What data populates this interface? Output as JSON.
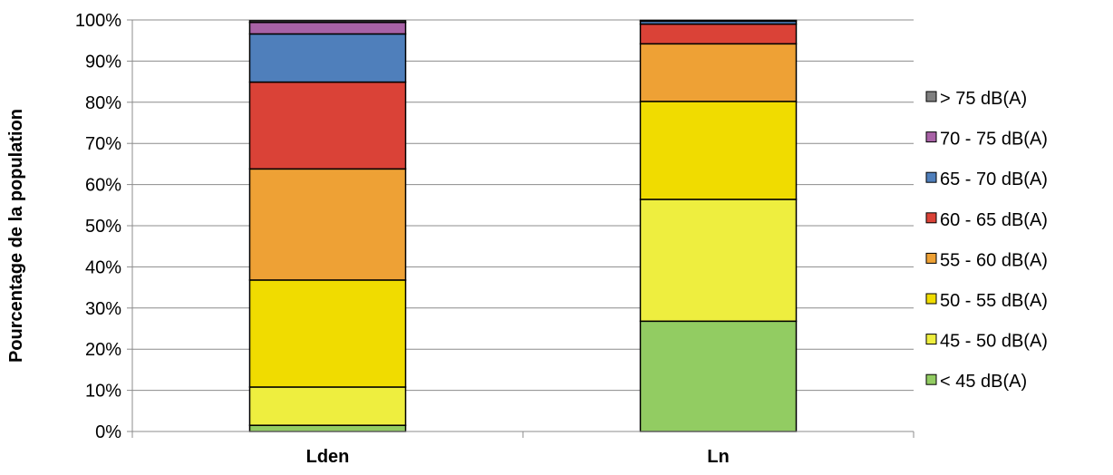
{
  "chart_data": {
    "type": "bar",
    "stacked": true,
    "percent": true,
    "categories": [
      "Lden",
      "Ln"
    ],
    "ylabel": "Pourcentage de la population",
    "xlabel": "",
    "ylim": [
      0,
      100
    ],
    "yticks": [
      "0%",
      "10%",
      "20%",
      "30%",
      "40%",
      "50%",
      "60%",
      "70%",
      "80%",
      "90%",
      "100%"
    ],
    "grid": true,
    "legend_position": "right",
    "series": [
      {
        "name": "< 45 dB(A)",
        "color": "#92cc62",
        "values": [
          1.5,
          26.8
        ]
      },
      {
        "name": "45 - 50 dB(A)",
        "color": "#eeee3f",
        "values": [
          9.3,
          29.6
        ]
      },
      {
        "name": "50 - 55 dB(A)",
        "color": "#f0dc00",
        "values": [
          26.0,
          23.8
        ]
      },
      {
        "name": "55 - 60 dB(A)",
        "color": "#eea135",
        "values": [
          27.0,
          14.0
        ]
      },
      {
        "name": "60 - 65 dB(A)",
        "color": "#da4237",
        "values": [
          21.1,
          4.8
        ]
      },
      {
        "name": "65 - 70 dB(A)",
        "color": "#4f7fbb",
        "values": [
          11.7,
          0.7
        ]
      },
      {
        "name": "70 - 75 dB(A)",
        "color": "#a862a6",
        "values": [
          2.8,
          0.2
        ]
      },
      {
        "name": "> 75 dB(A)",
        "color": "#7f7f7f",
        "values": [
          0.4,
          0.0
        ]
      }
    ]
  }
}
